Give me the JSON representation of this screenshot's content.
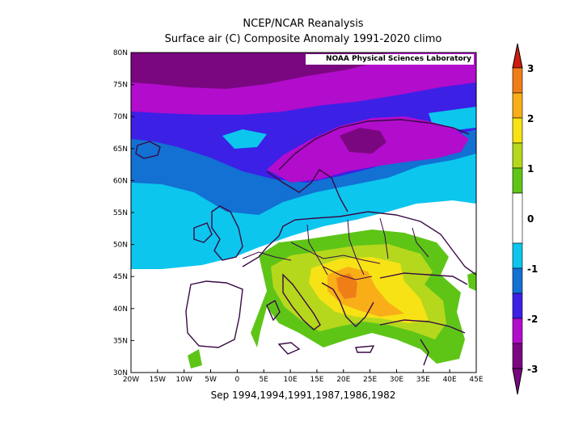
{
  "header": {
    "title_line1": "NCEP/NCAR Reanalysis",
    "title_line2": "Surface air (C) Composite Anomaly 1991-2020 climo"
  },
  "credit": "NOAA Physical Sciences Laboratory",
  "footer": {
    "dates": "Sep 1994,1994,1991,1987,1986,1982"
  },
  "map": {
    "lon_range": [
      -20,
      45
    ],
    "lat_range": [
      30,
      80
    ],
    "x_ticks": [
      "20W",
      "15W",
      "10W",
      "5W",
      "0",
      "5E",
      "10E",
      "15E",
      "20E",
      "25E",
      "30E",
      "35E",
      "40E",
      "45E"
    ],
    "y_ticks": [
      "30N",
      "35N",
      "40N",
      "45N",
      "50N",
      "55N",
      "60N",
      "65N",
      "70N",
      "75N",
      "80N"
    ]
  },
  "colorbar": {
    "labels": [
      "3",
      "2",
      "1",
      "0",
      "-1",
      "-2",
      "-3"
    ],
    "colors": {
      "dark_red": "#d01c0f",
      "orange": "#f07e17",
      "gold": "#f9ae18",
      "yellow": "#f6e215",
      "yellow_green": "#b5d81c",
      "green": "#5ec517",
      "white": "#ffffff",
      "cyan": "#0cc6ee",
      "blue": "#1271d3",
      "indigo": "#3c20e6",
      "magenta": "#b20ccc",
      "purple": "#7a0780"
    }
  }
}
